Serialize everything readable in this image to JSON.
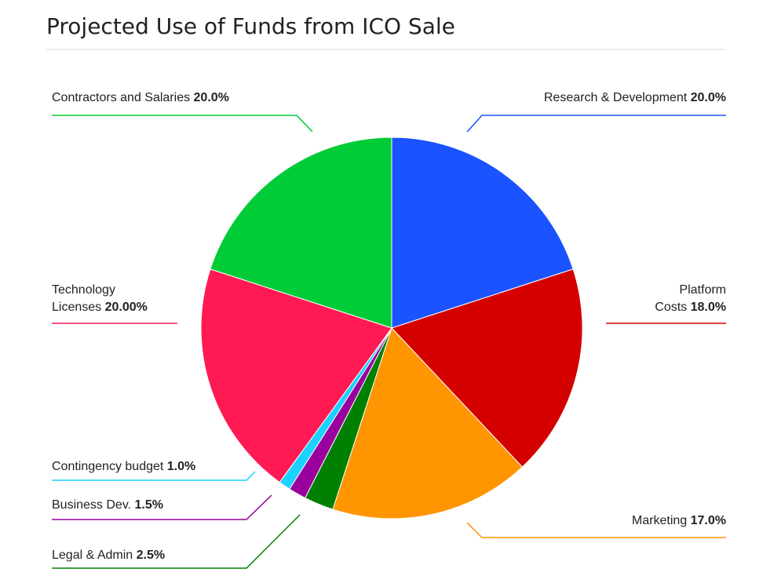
{
  "chart_data": {
    "type": "pie",
    "title": "Projected Use of Funds from ICO Sale",
    "slices": [
      {
        "name": "research-development",
        "label_lines": [
          "Research & Development"
        ],
        "pct_text": "20.0%",
        "value": 20.0,
        "color": "#1a53ff"
      },
      {
        "name": "platform-costs",
        "label_lines": [
          "Platform",
          "Costs"
        ],
        "pct_text": "18.0%",
        "value": 18.0,
        "color": "#d40000"
      },
      {
        "name": "marketing",
        "label_lines": [
          "Marketing"
        ],
        "pct_text": "17.0%",
        "value": 17.0,
        "color": "#ff9500"
      },
      {
        "name": "legal-admin",
        "label_lines": [
          "Legal & Admin"
        ],
        "pct_text": "2.5%",
        "value": 2.5,
        "color": "#008000"
      },
      {
        "name": "business-dev",
        "label_lines": [
          "Business Dev."
        ],
        "pct_text": "1.5%",
        "value": 1.5,
        "color": "#99009e"
      },
      {
        "name": "contingency-budget",
        "label_lines": [
          "Contingency budget"
        ],
        "pct_text": "1.0%",
        "value": 1.0,
        "color": "#1ad1ff"
      },
      {
        "name": "technology-licenses",
        "label_lines": [
          "Technology",
          "Licenses"
        ],
        "pct_text": "20.00%",
        "value": 20.0,
        "color": "#ff1a53"
      },
      {
        "name": "contractors-salaries",
        "label_lines": [
          "Contractors and Salaries"
        ],
        "pct_text": "20.0%",
        "value": 20.0,
        "color": "#00cc38"
      }
    ]
  }
}
